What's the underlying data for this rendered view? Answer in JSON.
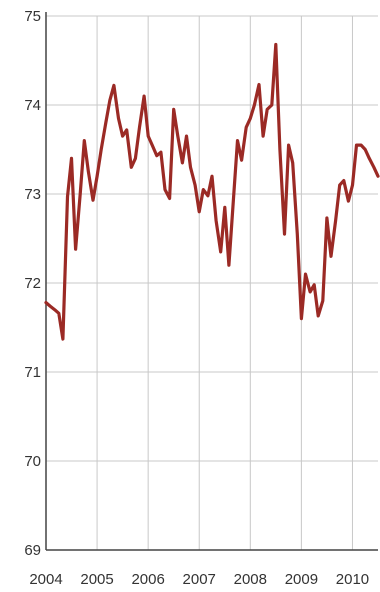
{
  "chart_data": {
    "type": "line",
    "title": "",
    "xlabel": "",
    "ylabel": "",
    "x_ticks": [
      "2004",
      "2005",
      "2006",
      "2007",
      "2008",
      "2009",
      "2010"
    ],
    "y_ticks": [
      "69",
      "70",
      "71",
      "72",
      "73",
      "74",
      "75"
    ],
    "xlim": [
      2004.0,
      2010.5
    ],
    "ylim": [
      69,
      75
    ],
    "grid": true,
    "series": [
      {
        "color": "#9b2a25",
        "x": [
          2004.0,
          2004.08,
          2004.17,
          2004.25,
          2004.33,
          2004.42,
          2004.5,
          2004.58,
          2004.67,
          2004.75,
          2004.83,
          2004.92,
          2005.0,
          2005.08,
          2005.17,
          2005.25,
          2005.33,
          2005.42,
          2005.5,
          2005.58,
          2005.67,
          2005.75,
          2005.83,
          2005.92,
          2006.0,
          2006.08,
          2006.17,
          2006.25,
          2006.33,
          2006.42,
          2006.5,
          2006.58,
          2006.67,
          2006.75,
          2006.83,
          2006.92,
          2007.0,
          2007.08,
          2007.17,
          2007.25,
          2007.33,
          2007.42,
          2007.5,
          2007.58,
          2007.67,
          2007.75,
          2007.83,
          2007.92,
          2008.0,
          2008.08,
          2008.17,
          2008.25,
          2008.33,
          2008.42,
          2008.5,
          2008.58,
          2008.67,
          2008.75,
          2008.83,
          2008.92,
          2009.0,
          2009.08,
          2009.17,
          2009.25,
          2009.33,
          2009.42,
          2009.5,
          2009.58,
          2009.67,
          2009.75,
          2009.83,
          2009.92,
          2010.0,
          2010.08,
          2010.17,
          2010.25,
          2010.33,
          2010.42,
          2010.5
        ],
        "y": [
          71.78,
          71.74,
          71.7,
          71.66,
          71.37,
          72.97,
          73.4,
          72.38,
          73.0,
          73.6,
          73.25,
          72.93,
          73.2,
          73.5,
          73.8,
          74.05,
          74.22,
          73.85,
          73.65,
          73.72,
          73.3,
          73.4,
          73.75,
          74.1,
          73.65,
          73.55,
          73.43,
          73.47,
          73.05,
          72.95,
          73.95,
          73.65,
          73.35,
          73.65,
          73.3,
          73.1,
          72.8,
          73.05,
          72.98,
          73.2,
          72.7,
          72.35,
          72.85,
          72.2,
          72.95,
          73.6,
          73.38,
          73.75,
          73.85,
          74.0,
          74.23,
          73.65,
          73.95,
          74.0,
          74.68,
          73.5,
          72.55,
          73.55,
          73.35,
          72.55,
          71.6,
          72.1,
          71.9,
          71.98,
          71.63,
          71.8,
          72.73,
          72.3,
          72.7,
          73.1,
          73.15,
          72.92,
          73.1,
          73.55,
          73.55,
          73.5,
          73.4,
          73.3,
          73.2
        ]
      }
    ]
  }
}
